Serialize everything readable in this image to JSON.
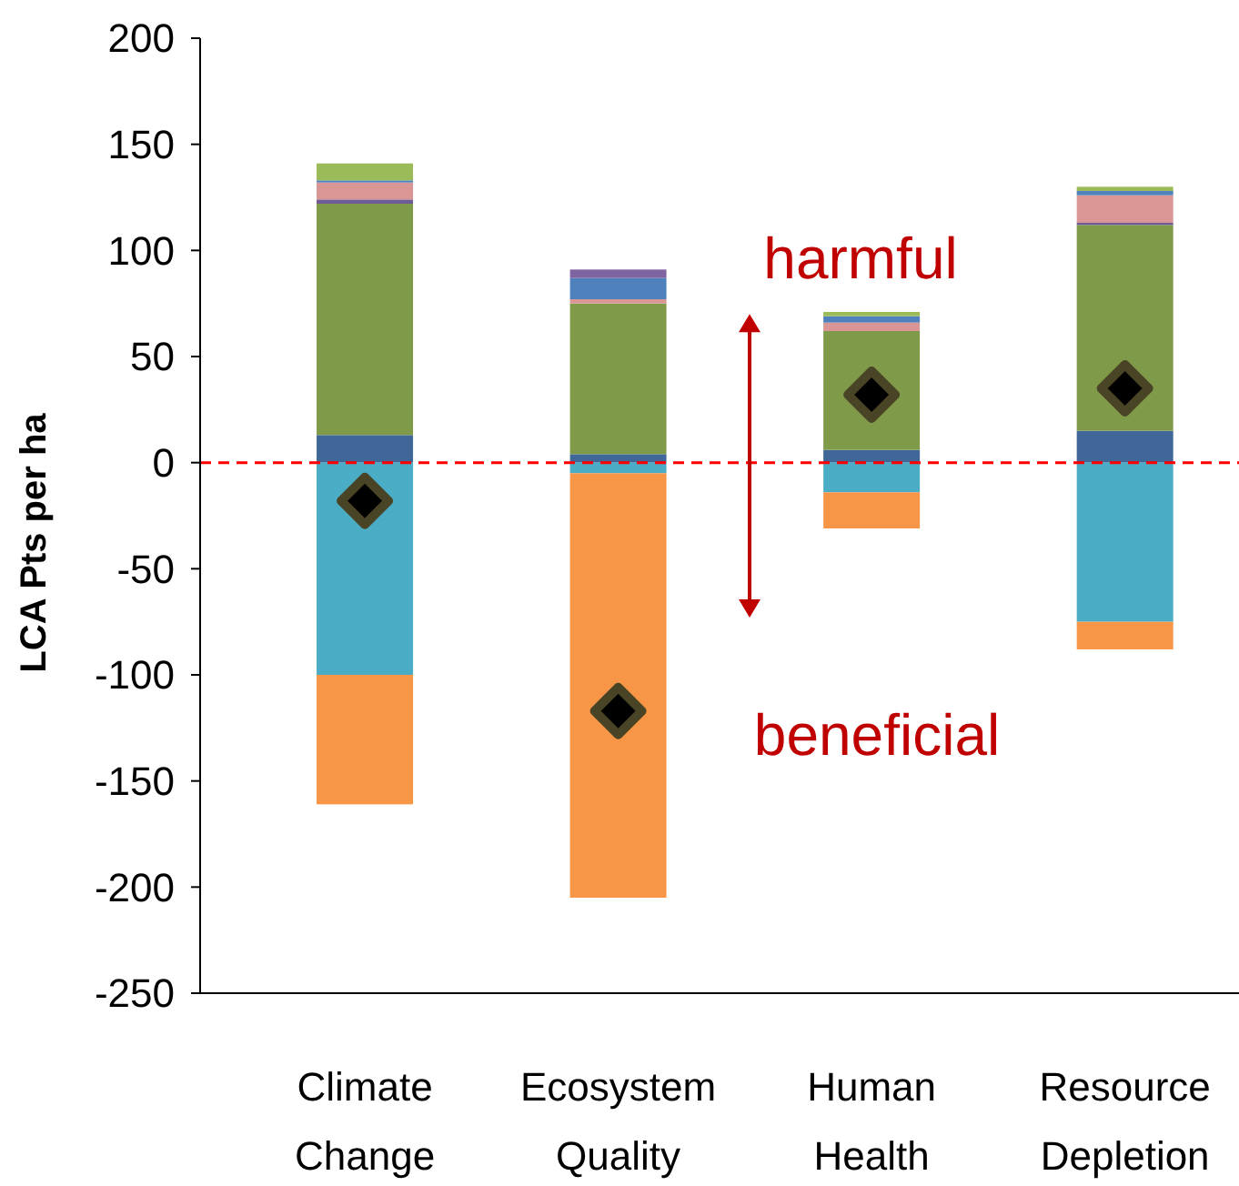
{
  "chart_data": {
    "type": "bar",
    "stacked": true,
    "ylabel": "LCA Pts per ha",
    "categories": [
      "Climate Change",
      "Ecosystem Quality",
      "Human Health",
      "Resource Depletion"
    ],
    "series": [
      {
        "color": "#3f6898",
        "values": [
          13,
          4,
          6,
          15
        ]
      },
      {
        "color": "#7f9a48",
        "values": [
          109,
          71,
          56,
          97
        ]
      },
      {
        "color": "#6e5a94",
        "values": [
          2,
          null,
          null,
          1
        ]
      },
      {
        "color": "#d99694",
        "values": [
          8,
          2,
          4,
          13
        ]
      },
      {
        "color": "#4f81bd",
        "values": [
          1,
          10,
          3,
          2
        ]
      },
      {
        "color": "#9bbb59",
        "values": [
          8,
          null,
          2,
          2
        ]
      },
      {
        "color": "#8064a2",
        "values": [
          null,
          4,
          null,
          null
        ]
      },
      {
        "color": "#4bacc6",
        "values": [
          -100,
          -5,
          -14,
          -75
        ]
      },
      {
        "color": "#f79646",
        "values": [
          -61,
          -200,
          -17,
          -13
        ]
      },
      {
        "type": "scatter",
        "color": "#000000",
        "marker": "diamond",
        "x": [
          "Climate Change",
          "Ecosystem Quality",
          "Human Health",
          "Resource Depletion"
        ],
        "values": [
          -18,
          -117,
          32,
          35
        ]
      }
    ],
    "ylim": [
      -250,
      200
    ],
    "yticks": [
      -250,
      -200,
      -150,
      -100,
      -50,
      0,
      50,
      100,
      150,
      200
    ],
    "ref_lines": [
      {
        "axis": "y",
        "value": 0,
        "color": "#ff0000",
        "line_style": "dashed"
      }
    ],
    "annotations": [
      "harmful",
      "beneficial"
    ]
  }
}
